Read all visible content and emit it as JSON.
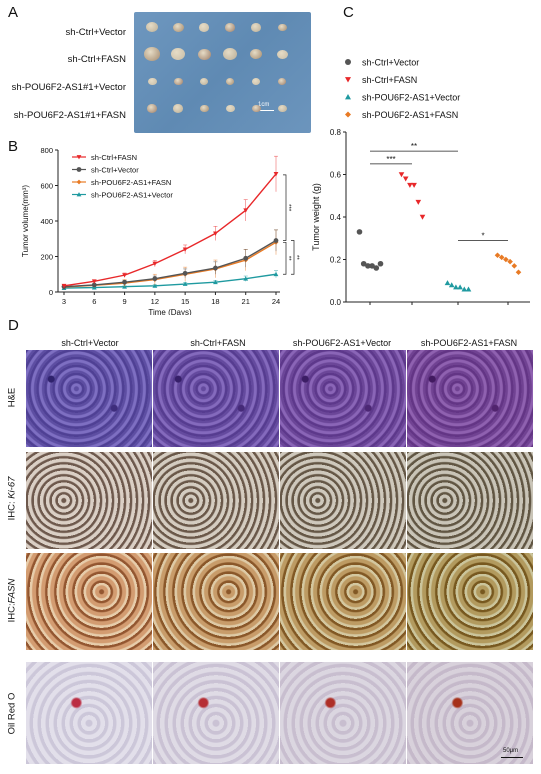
{
  "panels": {
    "A": "A",
    "B": "B",
    "C": "C",
    "D": "D"
  },
  "panelA": {
    "rows": [
      "sh-Ctrl+Vector",
      "sh-Ctrl+FASN",
      "sh-POU6F2-AS1#1+Vector",
      "sh-POU6F2-AS1#1+FASN"
    ],
    "scale": "1cm"
  },
  "chart_data": [
    {
      "type": "line",
      "xlabel": "Time (Days)",
      "ylabel": "Tumor volume(mm³)",
      "x": [
        3,
        6,
        9,
        12,
        15,
        18,
        21,
        24
      ],
      "xlim": [
        3,
        24
      ],
      "ylim": [
        0,
        800
      ],
      "yticks": [
        0,
        200,
        400,
        600,
        800
      ],
      "legend_position": "top-left",
      "series": [
        {
          "name": "sh-Ctrl+FASN",
          "color": "#e8282a",
          "marker": "triangle-down",
          "values": [
            35,
            60,
            95,
            160,
            240,
            330,
            460,
            665
          ],
          "errors": [
            5,
            8,
            12,
            18,
            25,
            40,
            60,
            100
          ]
        },
        {
          "name": "sh-Ctrl+Vector",
          "color": "#555555",
          "marker": "circle",
          "values": [
            30,
            40,
            55,
            75,
            105,
            135,
            190,
            290
          ],
          "errors": [
            5,
            6,
            10,
            15,
            25,
            35,
            50,
            60
          ]
        },
        {
          "name": "sh-POU6F2-AS1+FASN",
          "color": "#e87a24",
          "marker": "diamond",
          "values": [
            28,
            38,
            50,
            70,
            100,
            130,
            180,
            280
          ],
          "errors": [
            5,
            6,
            20,
            30,
            40,
            50,
            60,
            70
          ]
        },
        {
          "name": "sh-POU6F2-AS1+Vector",
          "color": "#1f9aa0",
          "marker": "triangle-up",
          "values": [
            22,
            25,
            30,
            35,
            45,
            55,
            75,
            100
          ],
          "errors": [
            3,
            4,
            5,
            6,
            8,
            10,
            15,
            20
          ]
        }
      ],
      "annotations": [
        "***",
        "**",
        "**"
      ]
    },
    {
      "type": "scatter",
      "ylabel": "Tumor weight (g)",
      "ylim": [
        0,
        0.8
      ],
      "yticks": [
        0.0,
        0.2,
        0.4,
        0.6,
        0.8
      ],
      "legend_position": "top",
      "series": [
        {
          "name": "sh-Ctrl+Vector",
          "color": "#555555",
          "marker": "circle",
          "values": [
            0.33,
            0.18,
            0.17,
            0.17,
            0.16,
            0.18
          ]
        },
        {
          "name": "sh-Ctrl+FASN",
          "color": "#e8282a",
          "marker": "triangle-down",
          "values": [
            0.6,
            0.58,
            0.55,
            0.55,
            0.47,
            0.4
          ]
        },
        {
          "name": "sh-POU6F2-AS1+Vector",
          "color": "#1f9aa0",
          "marker": "triangle-up",
          "values": [
            0.09,
            0.08,
            0.07,
            0.07,
            0.06,
            0.06
          ]
        },
        {
          "name": "sh-POU6F2-AS1+FASN",
          "color": "#e87a24",
          "marker": "diamond",
          "values": [
            0.22,
            0.21,
            0.2,
            0.19,
            0.17,
            0.14
          ]
        }
      ],
      "annotations": [
        "**",
        "***",
        "*"
      ]
    }
  ],
  "panelD": {
    "columns": [
      "sh-Ctrl+Vector",
      "sh-Ctrl+FASN",
      "sh-POU6F2-AS1+Vector",
      "sh-POU6F2-AS1+FASN"
    ],
    "rows": [
      {
        "label": "H&E",
        "style": "he"
      },
      {
        "prefix": "IHC: ",
        "italic": "Ki-67",
        "style": "ki"
      },
      {
        "prefix": "IHC:",
        "italic": "FASN",
        "style": "fasn"
      },
      {
        "label": "Oil Red O",
        "style": "oil"
      }
    ],
    "scale": "50μm"
  }
}
